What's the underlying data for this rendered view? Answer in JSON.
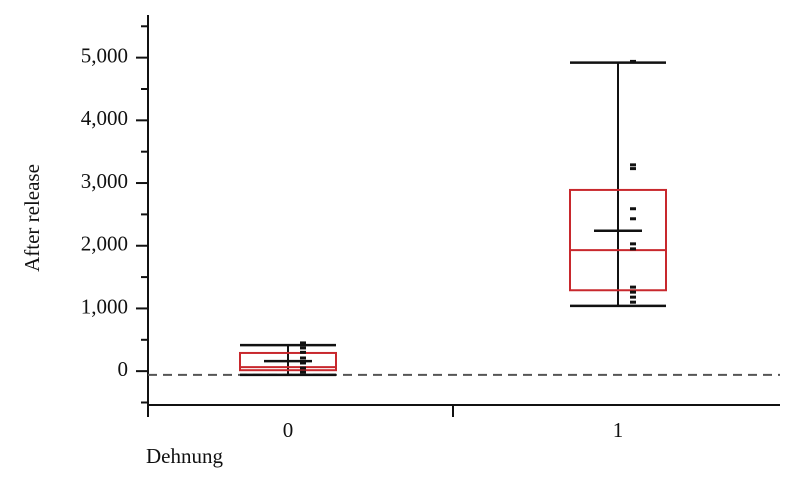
{
  "chart_data": {
    "type": "box",
    "x_label": "Dehnung",
    "y_label": "After release",
    "categories": [
      "0",
      "1"
    ],
    "ylim": [
      -540,
      5680
    ],
    "yticks": [
      {
        "value": 0,
        "label": "0"
      },
      {
        "value": 1000,
        "label": "1,000"
      },
      {
        "value": 2000,
        "label": "2,000"
      },
      {
        "value": 3000,
        "label": "3,000"
      },
      {
        "value": 4000,
        "label": "4,000"
      },
      {
        "value": 5000,
        "label": "5,000"
      }
    ],
    "yminorticks": [
      -500,
      500,
      1500,
      2500,
      3500,
      4500,
      5500
    ],
    "reference_line": -60,
    "box_color": "#c8282d",
    "whisker_color": "#111111",
    "groups": [
      {
        "whisker_low": -60,
        "q1": 15,
        "median": 65,
        "q3": 290,
        "whisker_high": 415,
        "mean": 160,
        "points": [
          450,
          370,
          300,
          210,
          130,
          50,
          -15
        ]
      },
      {
        "whisker_low": 1040,
        "q1": 1290,
        "median": 1930,
        "q3": 2890,
        "whisker_high": 4920,
        "mean": 2240,
        "points": [
          4940,
          3290,
          3230,
          2590,
          2430,
          2030,
          1950,
          1340,
          1260,
          1180,
          1100
        ]
      }
    ]
  }
}
